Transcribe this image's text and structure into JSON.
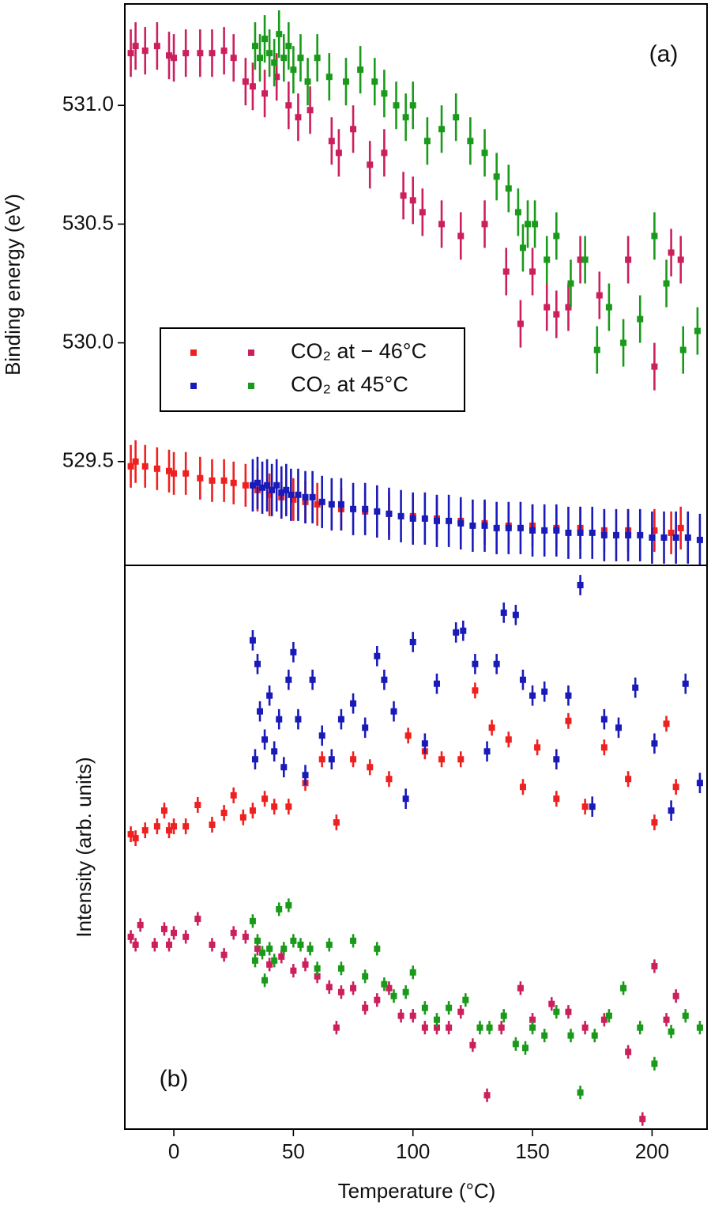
{
  "chart_data": [
    {
      "type": "scatter",
      "ylabel": "Binding energy (eV)",
      "annotation": "(a)",
      "legend": true,
      "xlim": [
        -20.5,
        223
      ],
      "ylim": [
        529.063,
        531.427
      ],
      "yticks": [
        529.5,
        {
          "value": 530,
          "label": "530.0"
        },
        530.5,
        {
          "value": 531,
          "label": "531.0"
        }
      ],
      "series": [
        {
          "name": "CO₂ at − 46°C",
          "color": "#ee2020",
          "error": 0.09,
          "x": [
            -18,
            -16,
            -12,
            -7,
            -2,
            0,
            5,
            11,
            16,
            21,
            25,
            30,
            35,
            40,
            45,
            50,
            55,
            60,
            70,
            80,
            90,
            100,
            110,
            120,
            130,
            140,
            150,
            160,
            170,
            180,
            190,
            201,
            208,
            212
          ],
          "values": [
            529.48,
            529.5,
            529.48,
            529.47,
            529.46,
            529.45,
            529.45,
            529.43,
            529.42,
            529.42,
            529.41,
            529.4,
            529.38,
            529.36,
            529.35,
            529.34,
            529.33,
            529.32,
            529.3,
            529.29,
            529.28,
            529.27,
            529.26,
            529.25,
            529.24,
            529.23,
            529.23,
            529.22,
            529.22,
            529.21,
            529.21,
            529.21,
            529.2,
            529.22
          ]
        },
        {
          "name": "CO₂ at − 46°C",
          "color": "#cc1f5e",
          "error": 0.1,
          "x": [
            -18,
            -16,
            -12,
            -7,
            -2,
            0,
            5,
            11,
            16,
            21,
            25,
            30,
            33,
            38,
            43,
            48,
            52,
            57,
            66,
            69,
            75,
            82,
            88,
            96,
            100,
            104,
            112,
            120,
            130,
            139,
            145,
            150,
            156,
            160,
            165,
            170,
            178,
            190,
            201,
            208,
            212
          ],
          "values": [
            531.22,
            531.25,
            531.23,
            531.25,
            531.21,
            531.2,
            531.22,
            531.22,
            531.22,
            531.23,
            531.2,
            531.1,
            531.08,
            531.05,
            531.12,
            531.0,
            530.95,
            530.98,
            530.85,
            530.8,
            530.9,
            530.75,
            530.8,
            530.62,
            530.6,
            530.55,
            530.5,
            530.45,
            530.5,
            530.3,
            530.08,
            530.3,
            530.15,
            530.12,
            530.15,
            530.35,
            530.2,
            530.35,
            529.9,
            530.38,
            530.35
          ]
        },
        {
          "name": "CO₂ at 45°C",
          "color": "#1a1ab8",
          "error": 0.11,
          "x": [
            33,
            35,
            37,
            39,
            41,
            43,
            45,
            47,
            49,
            52,
            55,
            58,
            62,
            66,
            70,
            75,
            80,
            85,
            90,
            95,
            100,
            105,
            110,
            115,
            120,
            125,
            130,
            135,
            140,
            145,
            150,
            155,
            160,
            165,
            170,
            175,
            180,
            185,
            190,
            195,
            200,
            205,
            210,
            215,
            220
          ],
          "values": [
            529.4,
            529.41,
            529.39,
            529.4,
            529.38,
            529.4,
            529.37,
            529.38,
            529.36,
            529.36,
            529.35,
            529.35,
            529.33,
            529.32,
            529.32,
            529.3,
            529.3,
            529.29,
            529.28,
            529.27,
            529.26,
            529.26,
            529.25,
            529.25,
            529.24,
            529.23,
            529.23,
            529.22,
            529.22,
            529.22,
            529.21,
            529.21,
            529.21,
            529.2,
            529.2,
            529.2,
            529.19,
            529.19,
            529.19,
            529.19,
            529.18,
            529.18,
            529.18,
            529.18,
            529.17
          ]
        },
        {
          "name": "CO₂ at 45°C",
          "color": "#1a9a1a",
          "error": 0.1,
          "x": [
            34,
            36,
            38,
            40,
            42,
            44,
            46,
            48,
            50,
            53,
            56,
            60,
            65,
            72,
            78,
            84,
            88,
            93,
            97,
            100,
            106,
            112,
            118,
            124,
            130,
            135,
            140,
            144,
            146,
            148,
            151,
            156,
            160,
            166,
            172,
            177,
            182,
            188,
            195,
            201,
            206,
            213,
            219
          ],
          "values": [
            531.25,
            531.2,
            531.28,
            531.22,
            531.18,
            531.3,
            531.2,
            531.25,
            531.15,
            531.2,
            531.1,
            531.2,
            531.12,
            531.1,
            531.15,
            531.1,
            531.05,
            531.0,
            530.95,
            531.0,
            530.85,
            530.9,
            530.95,
            530.85,
            530.8,
            530.7,
            530.65,
            530.55,
            530.4,
            530.5,
            530.5,
            530.35,
            530.45,
            530.25,
            530.35,
            529.97,
            530.15,
            530.0,
            530.1,
            530.45,
            530.25,
            529.97,
            530.05
          ]
        }
      ]
    },
    {
      "type": "scatter",
      "ylabel": "Intensity (arb. units)",
      "xlabel": "Temperature (°C)",
      "annotation": "(b)",
      "xlim": [
        -20.5,
        223
      ],
      "ylim": [
        0,
        1
      ],
      "xticks": [
        0,
        50,
        100,
        150,
        200
      ],
      "series": [
        {
          "color": "#ee2020",
          "error": 0.014,
          "x": [
            -18,
            -16,
            -12,
            -7,
            -4,
            -2,
            0,
            5,
            10,
            16,
            21,
            25,
            29,
            33,
            38,
            42,
            48,
            55,
            62,
            68,
            75,
            82,
            90,
            98,
            105,
            112,
            120,
            126,
            133,
            140,
            146,
            152,
            160,
            165,
            172,
            180,
            190,
            201,
            206,
            210
          ],
          "values": [
            0.523,
            0.516,
            0.53,
            0.537,
            0.565,
            0.53,
            0.537,
            0.537,
            0.575,
            0.54,
            0.561,
            0.592,
            0.553,
            0.565,
            0.586,
            0.572,
            0.572,
            0.614,
            0.656,
            0.544,
            0.656,
            0.642,
            0.621,
            0.698,
            0.67,
            0.656,
            0.656,
            0.778,
            0.712,
            0.691,
            0.607,
            0.677,
            0.586,
            0.724,
            0.572,
            0.677,
            0.621,
            0.544,
            0.719,
            0.607
          ]
        },
        {
          "color": "#cc1f5e",
          "error": 0.012,
          "x": [
            -18,
            -16,
            -14,
            -8,
            -4,
            -2,
            0,
            5,
            10,
            16,
            21,
            25,
            30,
            35,
            40,
            45,
            50,
            55,
            60,
            65,
            68,
            70,
            75,
            80,
            85,
            90,
            95,
            100,
            105,
            110,
            115,
            120,
            125,
            131,
            137,
            145,
            150,
            158,
            165,
            172,
            180,
            190,
            196,
            201,
            206,
            210
          ],
          "values": [
            0.341,
            0.327,
            0.362,
            0.327,
            0.355,
            0.327,
            0.348,
            0.341,
            0.373,
            0.327,
            0.309,
            0.348,
            0.341,
            0.32,
            0.292,
            0.306,
            0.281,
            0.292,
            0.271,
            0.252,
            0.18,
            0.243,
            0.25,
            0.215,
            0.229,
            0.25,
            0.201,
            0.201,
            0.18,
            0.18,
            0.18,
            0.208,
            0.149,
            0.06,
            0.18,
            0.25,
            0.194,
            0.222,
            0.208,
            0.18,
            0.194,
            0.137,
            0.018,
            0.289,
            0.194,
            0.236
          ]
        },
        {
          "color": "#1a1ab8",
          "error": 0.018,
          "x": [
            33,
            34,
            35,
            36,
            38,
            40,
            42,
            44,
            46,
            48,
            50,
            52,
            55,
            58,
            62,
            66,
            70,
            75,
            80,
            85,
            88,
            92,
            97,
            100,
            105,
            110,
            118,
            121,
            126,
            131,
            135,
            138,
            143,
            146,
            150,
            155,
            160,
            165,
            170,
            175,
            180,
            186,
            193,
            201,
            208,
            214,
            220
          ],
          "values": [
            0.867,
            0.656,
            0.825,
            0.741,
            0.691,
            0.769,
            0.67,
            0.727,
            0.642,
            0.797,
            0.846,
            0.727,
            0.628,
            0.797,
            0.698,
            0.656,
            0.727,
            0.755,
            0.712,
            0.839,
            0.797,
            0.741,
            0.586,
            0.864,
            0.684,
            0.79,
            0.881,
            0.884,
            0.825,
            0.67,
            0.825,
            0.916,
            0.912,
            0.797,
            0.769,
            0.776,
            0.656,
            0.769,
            0.965,
            0.572,
            0.727,
            0.712,
            0.783,
            0.684,
            0.565,
            0.79,
            0.614
          ]
        },
        {
          "color": "#1a9a1a",
          "error": 0.012,
          "x": [
            33,
            34,
            35,
            37,
            38,
            40,
            42,
            44,
            46,
            48,
            50,
            53,
            57,
            60,
            65,
            70,
            75,
            80,
            85,
            88,
            92,
            97,
            100,
            105,
            110,
            115,
            122,
            128,
            132,
            138,
            143,
            147,
            150,
            155,
            160,
            166,
            170,
            176,
            182,
            188,
            195,
            201,
            208,
            214,
            220
          ],
          "values": [
            0.369,
            0.299,
            0.334,
            0.313,
            0.264,
            0.32,
            0.299,
            0.39,
            0.32,
            0.397,
            0.334,
            0.327,
            0.32,
            0.285,
            0.327,
            0.285,
            0.334,
            0.271,
            0.32,
            0.257,
            0.236,
            0.243,
            0.278,
            0.215,
            0.194,
            0.215,
            0.229,
            0.18,
            0.18,
            0.201,
            0.151,
            0.144,
            0.18,
            0.166,
            0.208,
            0.166,
            0.065,
            0.166,
            0.201,
            0.25,
            0.18,
            0.116,
            0.173,
            0.201,
            0.18
          ]
        }
      ]
    }
  ]
}
